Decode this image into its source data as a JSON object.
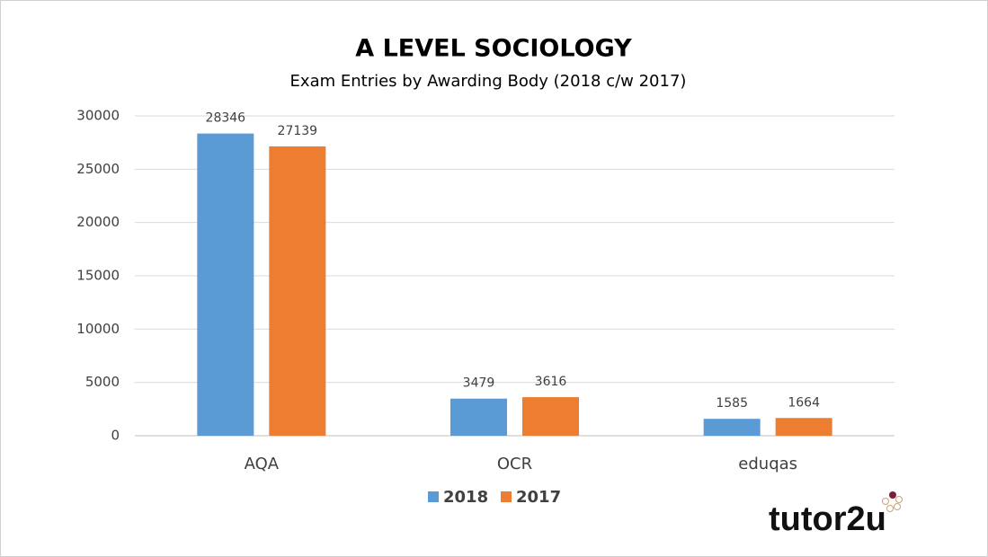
{
  "chart_data": {
    "type": "bar",
    "title": "A LEVEL SOCIOLOGY",
    "subtitle": "Exam Entries by Awarding Body (2018 c/w 2017)",
    "categories": [
      "AQA",
      "OCR",
      "eduqas"
    ],
    "series": [
      {
        "name": "2018",
        "color": "#5b9bd5",
        "values": [
          28346,
          3479,
          1585
        ]
      },
      {
        "name": "2017",
        "color": "#ed7d31",
        "values": [
          27139,
          3616,
          1664
        ]
      }
    ],
    "ylim": [
      0,
      30000
    ],
    "yticks": [
      0,
      5000,
      10000,
      15000,
      20000,
      25000,
      30000
    ],
    "grid": true,
    "legend": "bottom"
  },
  "logo": "tutor2u"
}
